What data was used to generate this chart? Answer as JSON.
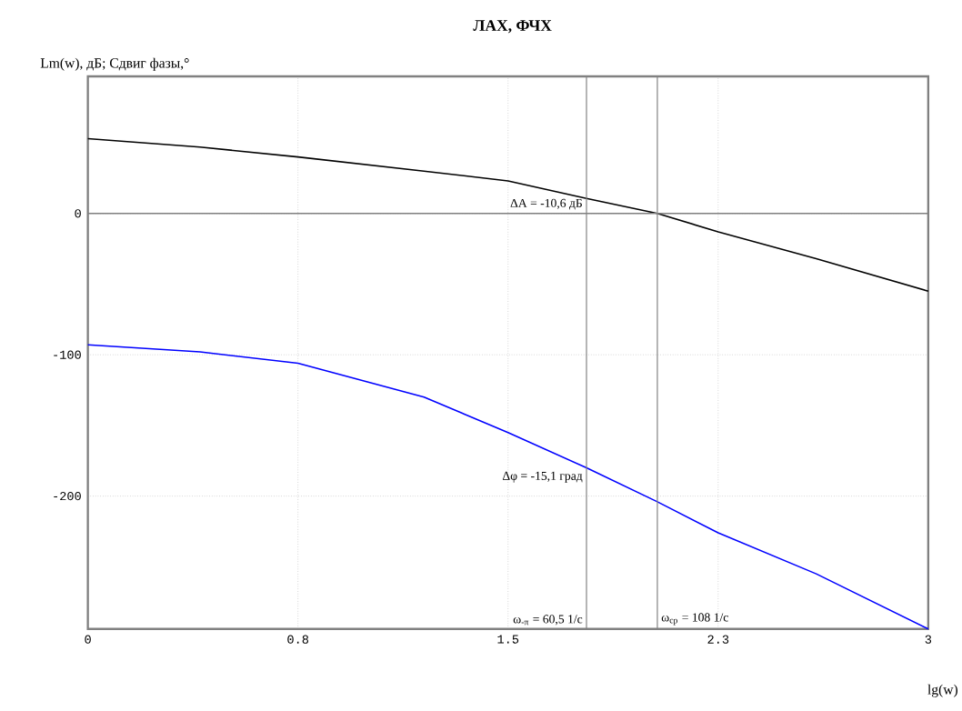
{
  "chart_data": {
    "type": "line",
    "title": "ЛАХ, ФЧХ",
    "ylabel": "Lm(w), дБ; Сдвиг фазы,°",
    "xlabel": "lg(w)",
    "xlim": [
      0,
      3
    ],
    "xticks": [
      0,
      {
        "value": 0.75,
        "label": "0.8"
      },
      1.5,
      {
        "value": 2.25,
        "label": "2.3"
      },
      3
    ],
    "ylim": [
      -294,
      97
    ],
    "yticks": [
      -200,
      -100,
      0
    ],
    "grid": true,
    "marker": "none",
    "line_style": "solid",
    "series": [
      {
        "color": "#000000",
        "x": [
          0,
          0.4,
          0.75,
          1.2,
          1.5,
          1.78,
          2.033,
          2.25,
          2.6,
          3
        ],
        "values": [
          53,
          47,
          40,
          30,
          23,
          10.6,
          0,
          -13,
          -32,
          -55
        ]
      },
      {
        "color": "#0000ff",
        "x": [
          0,
          0.4,
          0.75,
          1.2,
          1.5,
          1.78,
          2.033,
          2.25,
          2.6,
          3
        ],
        "values": [
          -93,
          -98,
          -106,
          -130,
          -155,
          -180,
          -204,
          -226,
          -255,
          -294
        ]
      }
    ],
    "ref_lines": [
      {
        "axis": "y",
        "value": 0,
        "color": "#808080"
      },
      {
        "axis": "x",
        "value": 1.78,
        "color": "#808080"
      },
      {
        "axis": "x",
        "value": 2.033,
        "color": "#808080"
      }
    ],
    "annotations": [
      "ΔA = -10,6 дБ",
      "Δφ = -15,1 град",
      "ω$_{-π}$ = 60,5 1/с",
      "ω$_{ср}$ = 108 1/с"
    ]
  }
}
